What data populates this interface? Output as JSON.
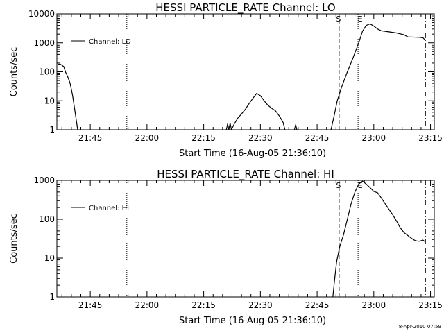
{
  "chart_data": [
    {
      "type": "line",
      "title": "HESSI PARTICLE_RATE Channel: LO",
      "xlabel": "Start Time (16-Aug-05 21:36:10)",
      "ylabel": "Counts/sec",
      "yscale": "log",
      "ylim": [
        1,
        10000
      ],
      "xlim": [
        "21:36:10",
        "23:16:00"
      ],
      "x_ticks": [
        "21:45",
        "22:00",
        "22:15",
        "22:30",
        "22:45",
        "23:00",
        "23:15"
      ],
      "y_ticks": [
        "1",
        "10",
        "100",
        "1000",
        "10000"
      ],
      "legend": {
        "label": "Channel: LO",
        "position": "top-left"
      },
      "markers": [
        {
          "label": "S",
          "time": "22:50:50",
          "style": "dashed"
        },
        {
          "label": "E",
          "time": "22:55:50",
          "style": "dotted"
        }
      ],
      "vlines": [
        {
          "time": "21:54:40",
          "style": "dotted"
        },
        {
          "time": "23:13:40",
          "style": "dashdot"
        }
      ],
      "series": [
        {
          "name": "Channel: LO",
          "points": [
            [
              "21:36:30",
              180
            ],
            [
              "21:37:00",
              185
            ],
            [
              "21:37:30",
              170
            ],
            [
              "21:38:00",
              150
            ],
            [
              "21:38:30",
              95
            ],
            [
              "21:39:00",
              70
            ],
            [
              "21:39:40",
              40
            ],
            [
              "21:40:20",
              15
            ],
            [
              "21:41:00",
              4
            ],
            [
              "21:41:40",
              1
            ],
            null,
            [
              "22:21:00",
              1
            ],
            [
              "22:21:20",
              1.6
            ],
            [
              "22:21:40",
              1
            ],
            [
              "22:22:00",
              1.7
            ],
            [
              "22:22:20",
              1
            ],
            [
              "22:23:00",
              1.5
            ],
            [
              "22:24:00",
              2.5
            ],
            [
              "22:25:00",
              3.5
            ],
            [
              "22:26:00",
              5
            ],
            [
              "22:27:00",
              8
            ],
            [
              "22:28:00",
              12
            ],
            [
              "22:29:00",
              18
            ],
            [
              "22:30:00",
              15
            ],
            [
              "22:31:00",
              10
            ],
            [
              "22:32:00",
              7
            ],
            [
              "22:33:00",
              5.5
            ],
            [
              "22:34:00",
              4.5
            ],
            [
              "22:35:00",
              3
            ],
            [
              "22:36:00",
              1.8
            ],
            [
              "22:36:30",
              1
            ],
            null,
            [
              "22:39:00",
              1
            ],
            [
              "22:39:20",
              1.5
            ],
            [
              "22:39:40",
              1
            ],
            null,
            [
              "22:48:40",
              1
            ],
            [
              "22:49:30",
              3
            ],
            [
              "22:50:20",
              10
            ],
            [
              "22:51:30",
              30
            ],
            [
              "22:53:00",
              100
            ],
            [
              "22:54:30",
              300
            ],
            [
              "22:56:00",
              1000
            ],
            [
              "22:57:00",
              2500
            ],
            [
              "22:58:00",
              4000
            ],
            [
              "22:59:00",
              4500
            ],
            [
              "23:00:00",
              3800
            ],
            [
              "23:01:00",
              3000
            ],
            [
              "23:02:00",
              2600
            ],
            [
              "23:04:00",
              2400
            ],
            [
              "23:06:00",
              2200
            ],
            [
              "23:08:00",
              1900
            ],
            [
              "23:09:00",
              1600
            ],
            [
              "23:12:00",
              1550
            ],
            [
              "23:13:00",
              1500
            ],
            [
              "23:13:40",
              1200
            ]
          ]
        }
      ]
    },
    {
      "type": "line",
      "title": "HESSI PARTICLE_RATE Channel: HI",
      "xlabel": "Start Time (16-Aug-05 21:36:10)",
      "ylabel": "Counts/sec",
      "yscale": "log",
      "ylim": [
        1,
        1000
      ],
      "xlim": [
        "21:36:10",
        "23:16:00"
      ],
      "x_ticks": [
        "21:45",
        "22:00",
        "22:15",
        "22:30",
        "22:45",
        "23:00",
        "23:15"
      ],
      "y_ticks": [
        "1",
        "10",
        "100",
        "1000"
      ],
      "legend": {
        "label": "Channel: HI",
        "position": "top-left"
      },
      "markers": [
        {
          "label": "S",
          "time": "22:50:50",
          "style": "dashed"
        },
        {
          "label": "E",
          "time": "22:55:50",
          "style": "dotted"
        }
      ],
      "vlines": [
        {
          "time": "21:54:40",
          "style": "dotted"
        },
        {
          "time": "23:13:40",
          "style": "dashdot"
        }
      ],
      "series": [
        {
          "name": "Channel: HI",
          "points": [
            [
              "22:49:10",
              1
            ],
            [
              "22:49:40",
              3
            ],
            [
              "22:50:10",
              8
            ],
            [
              "22:51:00",
              20
            ],
            [
              "22:52:00",
              40
            ],
            [
              "22:53:00",
              100
            ],
            [
              "22:54:00",
              250
            ],
            [
              "22:55:00",
              500
            ],
            [
              "22:56:00",
              800
            ],
            [
              "22:57:00",
              950
            ],
            [
              "22:58:00",
              800
            ],
            [
              "22:59:00",
              650
            ],
            [
              "23:00:00",
              520
            ],
            [
              "23:01:00",
              480
            ],
            [
              "23:02:00",
              350
            ],
            [
              "23:03:00",
              250
            ],
            [
              "23:04:00",
              180
            ],
            [
              "23:05:00",
              130
            ],
            [
              "23:06:00",
              90
            ],
            [
              "23:07:00",
              60
            ],
            [
              "23:08:00",
              45
            ],
            [
              "23:09:00",
              38
            ],
            [
              "23:10:00",
              32
            ],
            [
              "23:11:00",
              28
            ],
            [
              "23:12:00",
              27
            ],
            [
              "23:13:00",
              29
            ],
            [
              "23:13:40",
              26
            ]
          ]
        }
      ]
    }
  ],
  "footer": {
    "timestamp": "8-Apr-2010 07:59"
  }
}
